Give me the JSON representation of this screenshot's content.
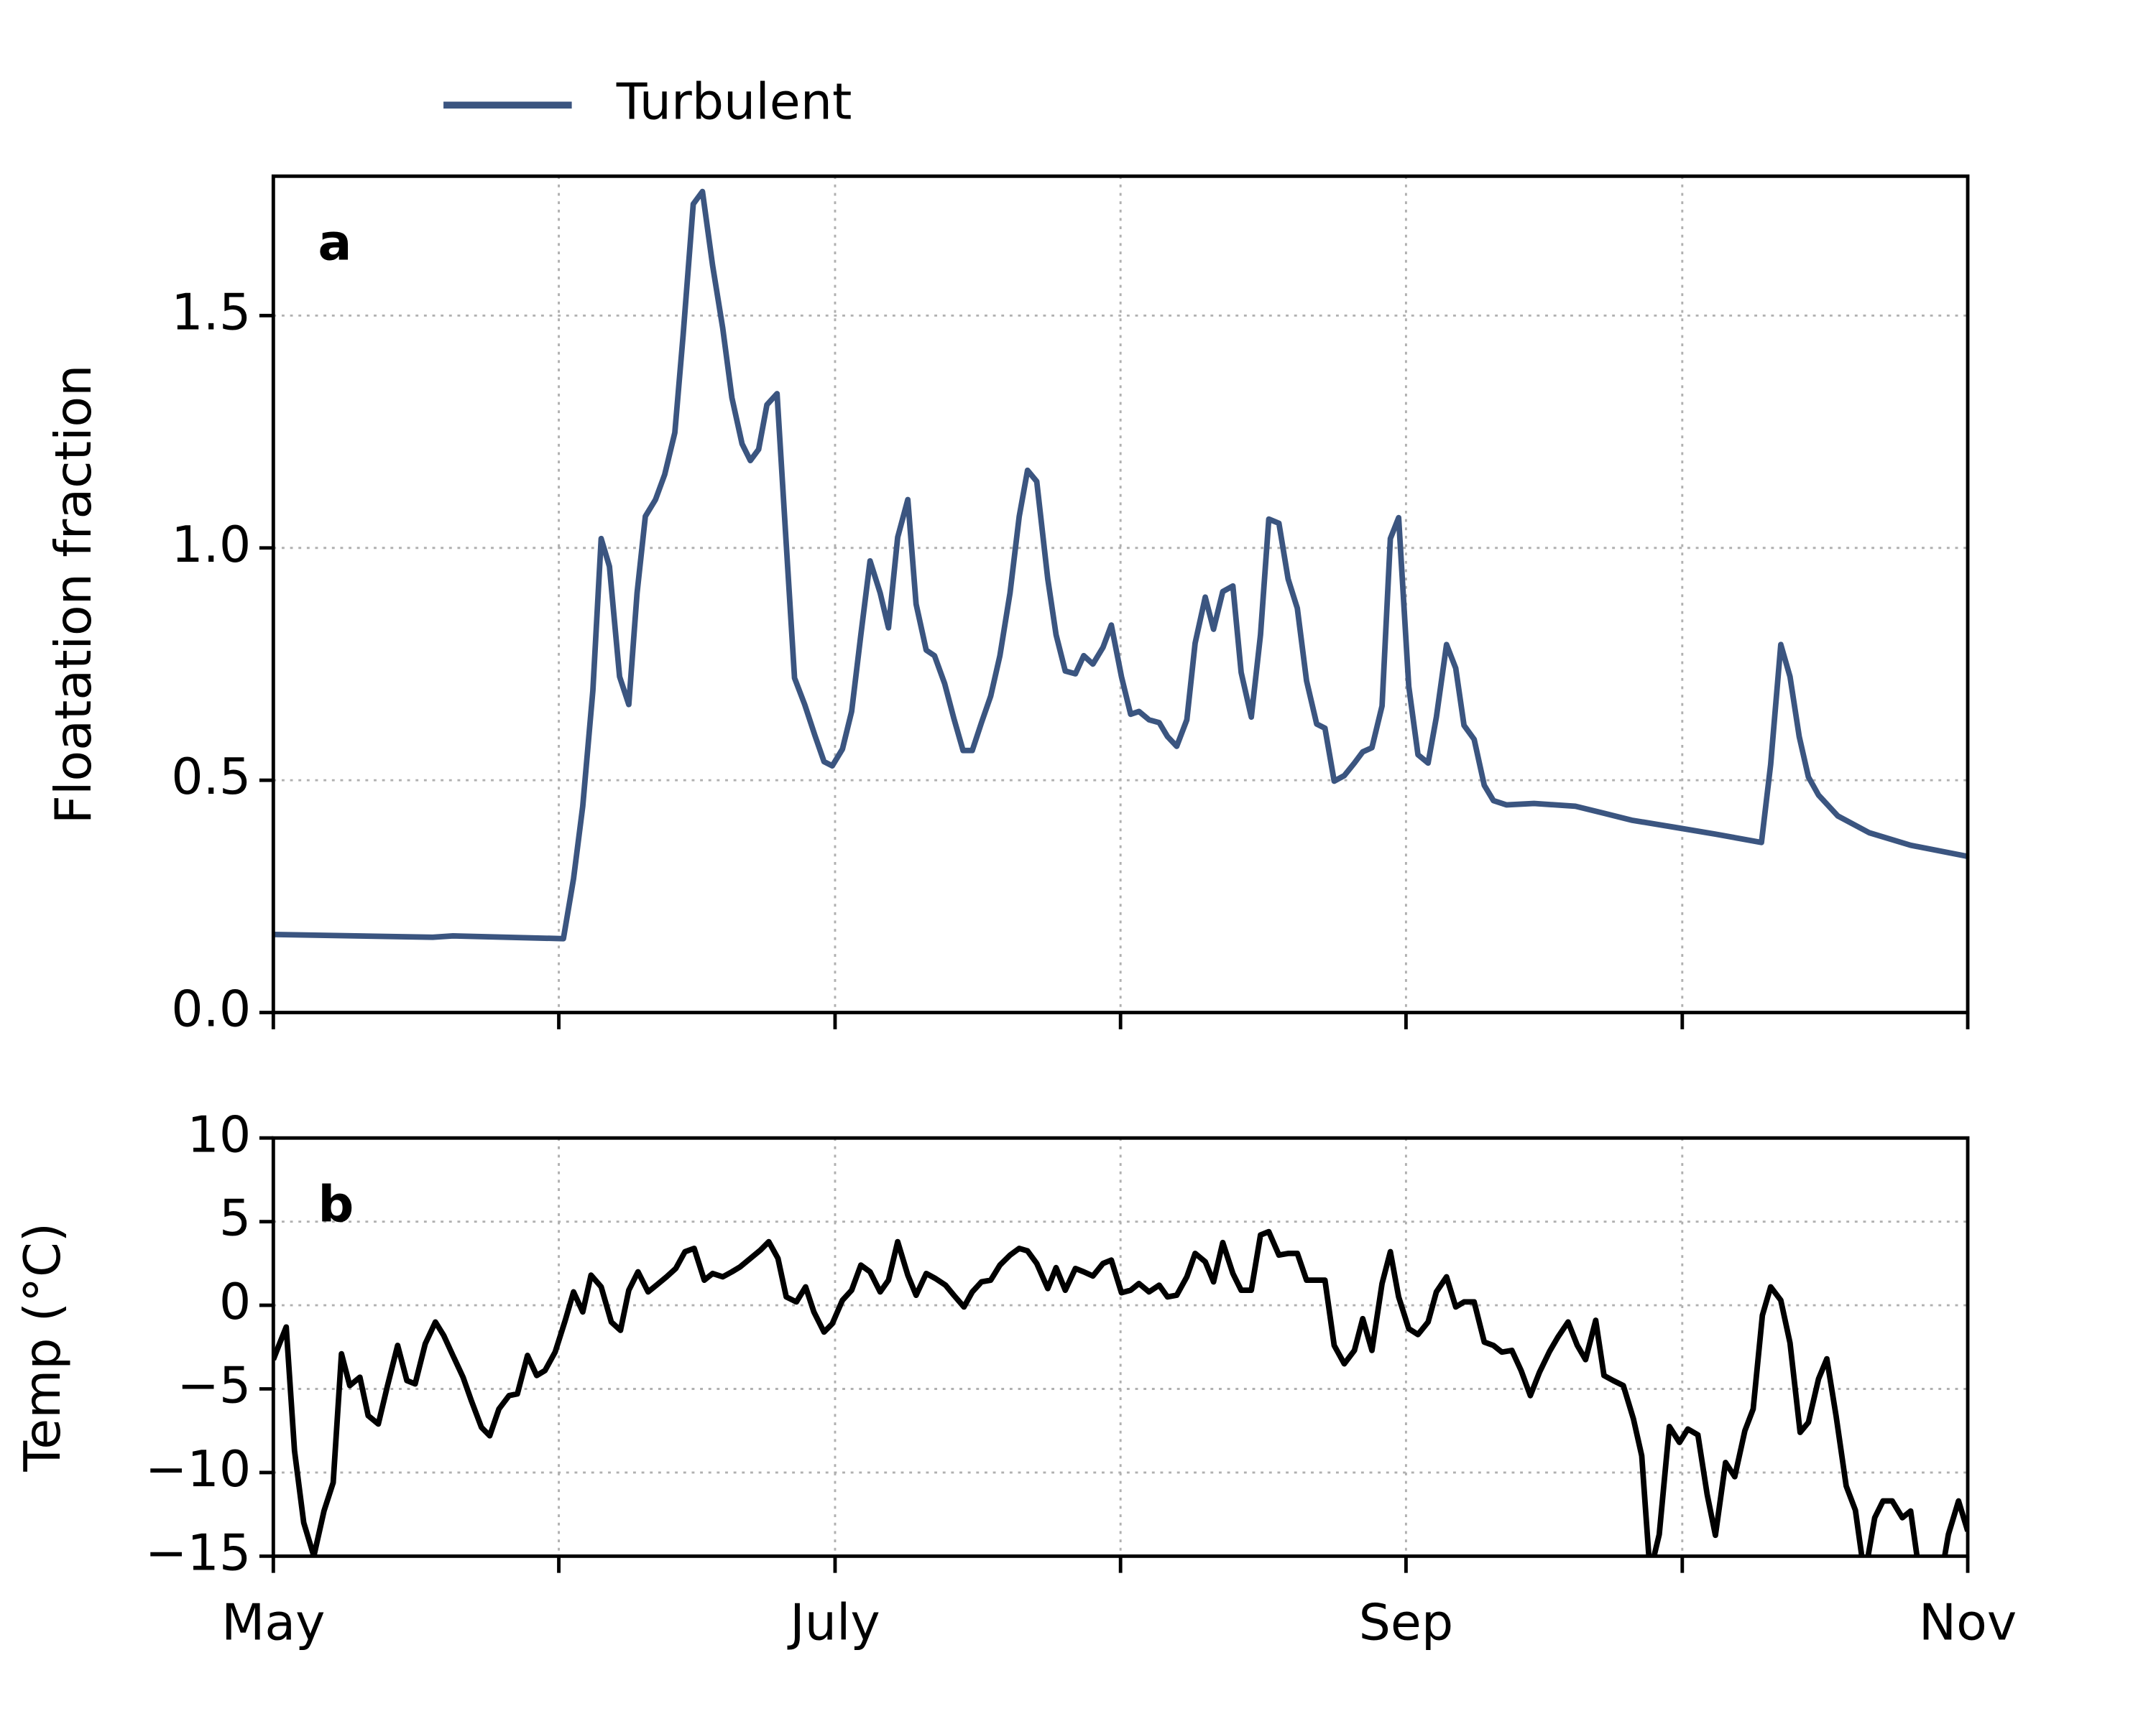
{
  "chart_data": [
    {
      "type": "line",
      "ylabel": "Floatation fraction",
      "annotation": "a",
      "legend": "top",
      "xlim": [
        0,
        184
      ],
      "xticks": [
        0,
        31,
        61,
        92,
        123,
        153,
        184
      ],
      "xticklabels": false,
      "ylim": [
        0,
        1.8
      ],
      "yticks": [
        {
          "value": 0,
          "label": "0.0"
        },
        0.5,
        {
          "value": 1,
          "label": "1.0"
        },
        1.5
      ],
      "grid": true,
      "x": [
        0,
        17.3,
        19.5,
        31.5,
        32.6,
        33.6,
        34.7,
        35.6,
        36.5,
        37.6,
        38.6,
        39.5,
        40.4,
        41.5,
        42.5,
        43.6,
        44.5,
        45.6,
        46.6,
        47.7,
        48.8,
        49.8,
        50.9,
        51.8,
        52.7,
        53.6,
        54.7,
        55.7,
        56.6,
        57.7,
        58.8,
        59.8,
        60.7,
        61.8,
        62.8,
        63.8,
        64.8,
        65.9,
        66.8,
        67.8,
        68.9,
        69.8,
        70.9,
        71.8,
        72.9,
        73.9,
        74.9,
        75.9,
        76.9,
        77.9,
        78.9,
        80.0,
        81.0,
        81.9,
        82.9,
        84.1,
        85.0,
        86.0,
        87.1,
        88.0,
        89.0,
        90.1,
        91.0,
        92.1,
        93.1,
        94.0,
        95.1,
        96.2,
        97.1,
        98.1,
        99.2,
        100.1,
        101.2,
        102.1,
        103.1,
        104.2,
        105.1,
        106.2,
        107.2,
        108.1,
        109.2,
        110.2,
        111.2,
        112.2,
        113.3,
        114.2,
        115.2,
        116.3,
        117.4,
        118.3,
        119.3,
        120.4,
        121.3,
        122.2,
        123.3,
        124.3,
        125.4,
        126.3,
        127.4,
        128.4,
        129.3,
        130.4,
        131.5,
        132.5,
        133.9,
        136.9,
        141.4,
        144.5,
        147.5,
        152.1,
        156.6,
        161.6,
        162.6,
        163.7,
        164.7,
        165.7,
        166.7,
        167.8,
        169.9,
        173.3,
        177.8,
        184
      ],
      "series": [
        {
          "name": "Turbulent",
          "color": "#3b5580",
          "values": [
            0.168,
            0.162,
            0.165,
            0.159,
            0.288,
            0.444,
            0.693,
            1.02,
            0.96,
            0.723,
            0.663,
            0.903,
            1.068,
            1.104,
            1.158,
            1.248,
            1.458,
            1.74,
            1.767,
            1.608,
            1.473,
            1.323,
            1.224,
            1.188,
            1.212,
            1.308,
            1.332,
            1.008,
            0.72,
            0.663,
            0.597,
            0.54,
            0.531,
            0.567,
            0.648,
            0.813,
            0.972,
            0.903,
            0.828,
            1.023,
            1.104,
            0.879,
            0.78,
            0.768,
            0.708,
            0.633,
            0.564,
            0.564,
            0.624,
            0.681,
            0.768,
            0.903,
            1.068,
            1.167,
            1.143,
            0.933,
            0.813,
            0.735,
            0.729,
            0.768,
            0.75,
            0.786,
            0.834,
            0.723,
            0.642,
            0.648,
            0.63,
            0.624,
            0.594,
            0.573,
            0.63,
            0.795,
            0.894,
            0.825,
            0.906,
            0.918,
            0.732,
            0.636,
            0.813,
            1.062,
            1.053,
            0.933,
            0.87,
            0.714,
            0.621,
            0.612,
            0.498,
            0.51,
            0.537,
            0.561,
            0.57,
            0.66,
            1.02,
            1.065,
            0.702,
            0.555,
            0.537,
            0.636,
            0.792,
            0.741,
            0.618,
            0.588,
            0.489,
            0.456,
            0.447,
            0.45,
            0.444,
            0.429,
            0.414,
            0.399,
            0.384,
            0.366,
            0.534,
            0.792,
            0.723,
            0.594,
            0.507,
            0.468,
            0.423,
            0.387,
            0.36,
            0.336
          ]
        }
      ]
    },
    {
      "type": "line",
      "ylabel": "Temp (°C)",
      "annotation": "b",
      "xlim": [
        0,
        184
      ],
      "xticks": [
        {
          "value": 0,
          "label": "May"
        },
        {
          "value": 31,
          "label": null
        },
        {
          "value": 61,
          "label": "July"
        },
        {
          "value": 92,
          "label": null
        },
        {
          "value": 123,
          "label": "Sep"
        },
        {
          "value": 153,
          "label": null
        },
        {
          "value": 184,
          "label": "Nov"
        }
      ],
      "ylim": [
        -15,
        10
      ],
      "yticks": [
        {
          "value": -15,
          "label": "−15"
        },
        {
          "value": -10,
          "label": "−10"
        },
        {
          "value": -5,
          "label": "−5"
        },
        0,
        5,
        10
      ],
      "grid": true,
      "color": "#000000",
      "x": [
        0,
        0.6,
        1.4,
        2.3,
        3.3,
        4.4,
        5.5,
        6.5,
        7.4,
        8.3,
        9.4,
        10.3,
        11.4,
        12.4,
        13.5,
        14.5,
        15.4,
        16.5,
        17.6,
        18.5,
        19.5,
        20.6,
        21.5,
        22.6,
        23.5,
        24.5,
        25.6,
        26.5,
        27.6,
        28.6,
        29.5,
        30.6,
        31.7,
        32.6,
        33.6,
        34.5,
        35.6,
        36.7,
        37.7,
        38.6,
        39.6,
        40.7,
        41.6,
        42.7,
        43.7,
        44.7,
        45.7,
        46.8,
        47.7,
        48.8,
        49.8,
        50.7,
        51.8,
        52.9,
        53.8,
        54.8,
        55.7,
        56.8,
        57.8,
        58.7,
        59.8,
        60.7,
        61.8,
        62.8,
        63.8,
        64.8,
        65.9,
        66.8,
        67.8,
        68.9,
        69.8,
        70.9,
        71.9,
        73.0,
        73.9,
        75.0,
        75.9,
        76.9,
        77.9,
        78.9,
        80.0,
        81.0,
        81.9,
        82.9,
        84.1,
        85.0,
        86.0,
        87.1,
        88.0,
        89.0,
        90.1,
        91.0,
        92.1,
        93.1,
        94.0,
        95.1,
        96.2,
        97.1,
        98.1,
        99.2,
        100.1,
        101.2,
        102.1,
        103.1,
        104.2,
        105.1,
        106.2,
        107.2,
        108.1,
        109.2,
        110.2,
        111.2,
        112.2,
        113.3,
        114.2,
        115.2,
        116.3,
        117.4,
        118.3,
        119.3,
        120.4,
        121.3,
        122.2,
        123.3,
        124.3,
        125.4,
        126.3,
        127.4,
        128.4,
        129.3,
        130.4,
        131.5,
        132.5,
        133.4,
        134.5,
        135.5,
        136.5,
        137.5,
        138.6,
        139.5,
        140.6,
        141.6,
        142.5,
        143.6,
        144.5,
        145.5,
        146.6,
        147.7,
        148.6,
        149.5,
        150.5,
        151.6,
        152.7,
        153.6,
        154.7,
        155.7,
        156.6,
        157.7,
        158.7,
        159.8,
        160.7,
        161.7,
        162.6,
        163.7,
        164.7,
        165.8,
        166.7,
        167.8,
        168.7,
        169.7,
        170.8,
        171.8,
        172.8,
        173.9,
        174.8,
        175.8,
        176.9,
        177.8,
        178.9,
        179.9,
        181.0,
        181.9,
        183.0,
        184
      ],
      "values": [
        -3.25,
        -2.4,
        -1.3,
        -8.7,
        -13,
        -15,
        -12.3,
        -10.6,
        -2.9,
        -4.8,
        -4.3,
        -6.6,
        -7.1,
        -4.8,
        -2.4,
        -4.5,
        -4.7,
        -2.3,
        -1,
        -1.8,
        -3,
        -4.3,
        -5.7,
        -7.3,
        -7.8,
        -6.2,
        -5.4,
        -5.3,
        -3,
        -4.2,
        -3.9,
        -2.8,
        -0.9,
        0.8,
        -0.4,
        1.8,
        1.1,
        -1,
        -1.5,
        0.9,
        2,
        0.8,
        1.2,
        1.7,
        2.2,
        3.2,
        3.4,
        1.5,
        1.9,
        1.7,
        2,
        2.3,
        2.8,
        3.3,
        3.8,
        2.8,
        0.5,
        0.2,
        1.1,
        -0.4,
        -1.6,
        -1.1,
        0.3,
        0.9,
        2.4,
        2,
        0.8,
        1.5,
        3.8,
        1.8,
        0.6,
        1.9,
        1.6,
        1.2,
        0.6,
        -0.1,
        0.8,
        1.4,
        1.5,
        2.4,
        3,
        3.4,
        3.25,
        2.5,
        1,
        2.25,
        0.9,
        2.2,
        2,
        1.75,
        2.5,
        2.7,
        0.75,
        0.9,
        1.3,
        0.8,
        1.2,
        0.5,
        0.6,
        1.7,
        3.1,
        2.6,
        1.4,
        3.75,
        1.9,
        0.9,
        0.9,
        4.2,
        4.4,
        3,
        3.1,
        3.1,
        1.5,
        1.5,
        1.5,
        -2.4,
        -3.5,
        -2.7,
        -0.8,
        -2.7,
        1.3,
        3.2,
        0.5,
        -1.4,
        -1.75,
        -1,
        0.8,
        1.7,
        -0.1,
        0.2,
        0.2,
        -2.2,
        -2.4,
        -2.8,
        -2.7,
        -3.9,
        -5.4,
        -4,
        -2.75,
        -1.9,
        -1,
        -2.4,
        -3.25,
        -0.9,
        -4.2,
        -4.5,
        -4.8,
        -6.8,
        -9,
        -16,
        -13.7,
        -7.25,
        -8.2,
        -7.4,
        -7.75,
        -11.3,
        -13.75,
        -9.4,
        -10.25,
        -7.5,
        -6.2,
        -0.6,
        1.1,
        0.3,
        -2.25,
        -7.6,
        -7,
        -4.4,
        -3.2,
        -6.6,
        -10.8,
        -12.25,
        -16.2,
        -12.7,
        -11.7,
        -11.7,
        -12.7,
        -12.3,
        -16.6,
        -16.2,
        -16.6,
        -13.7,
        -11.7,
        -13.5
      ]
    }
  ]
}
